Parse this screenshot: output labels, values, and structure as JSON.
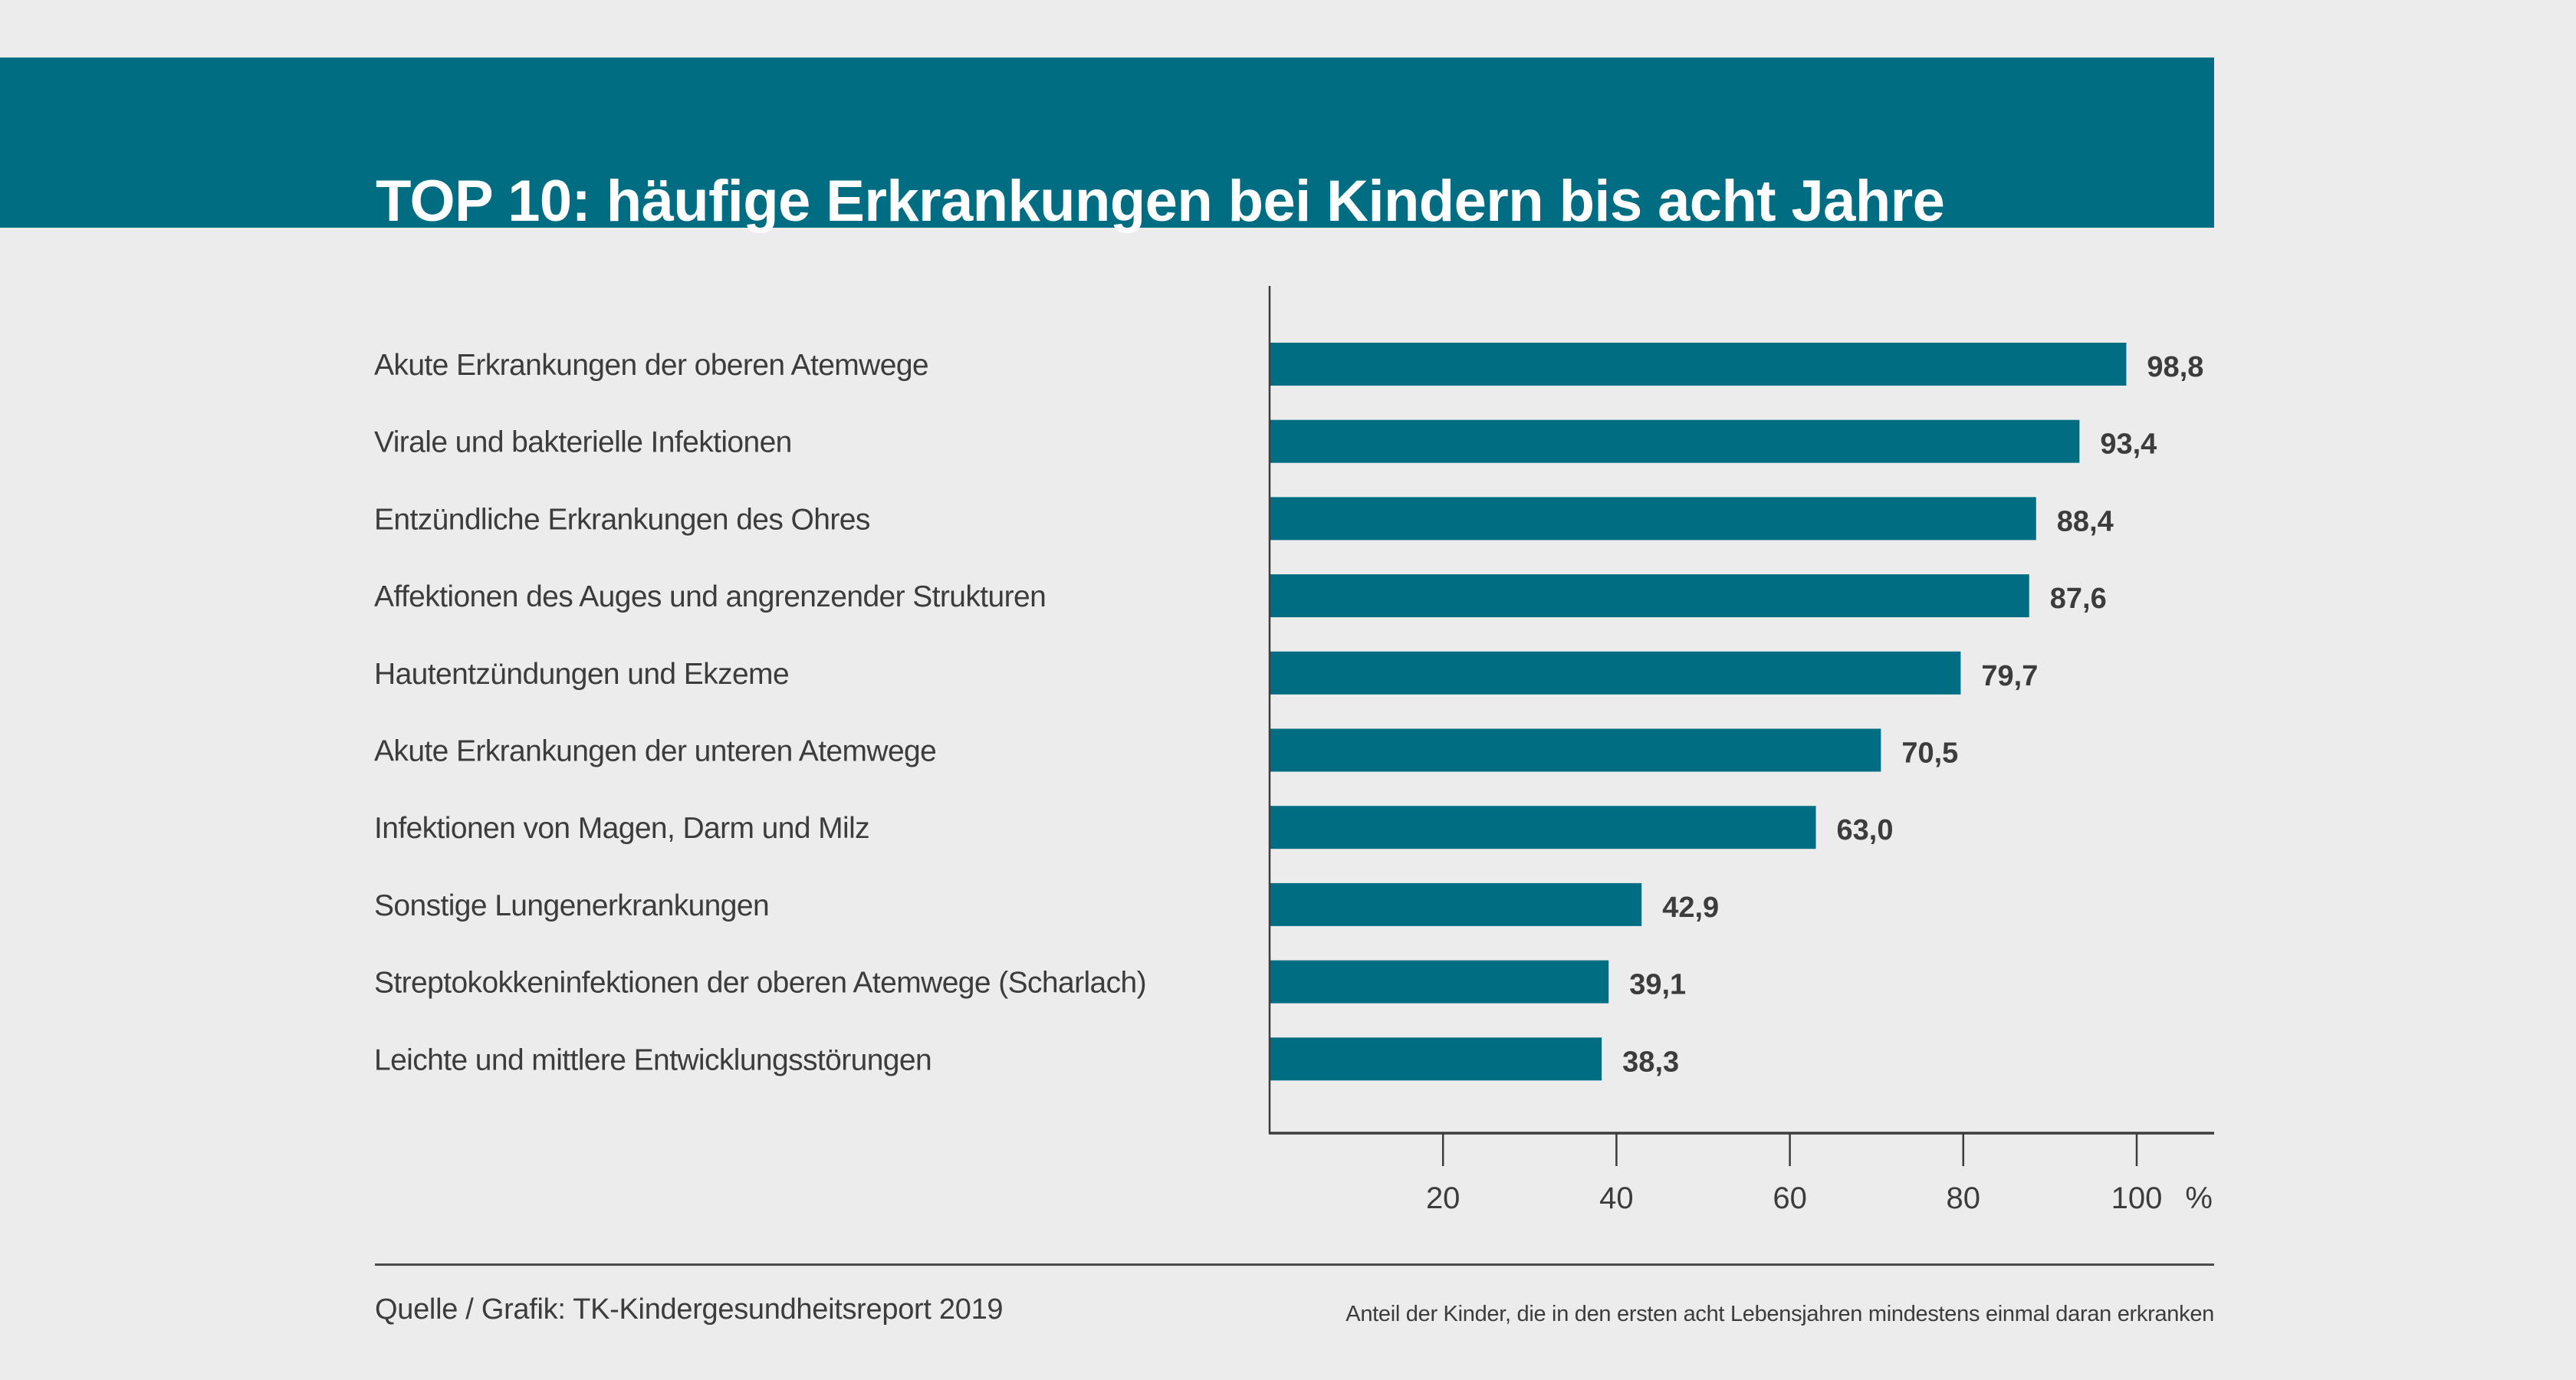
{
  "header": {
    "title": "TOP 10: häufige Erkrankungen bei Kindern bis acht Jahre"
  },
  "colors": {
    "accent": "#006d82",
    "background": "#ececec",
    "text": "#3c3c3c",
    "title_text": "#ffffff"
  },
  "footer": {
    "source": "Quelle / Grafik: TK-Kindergesundheitsreport 2019",
    "note": "Anteil der Kinder, die in den ersten acht Lebensjahren mindestens einmal daran erkranken"
  },
  "chart_data": {
    "type": "bar",
    "orientation": "horizontal",
    "title": "TOP 10: häufige Erkrankungen bei Kindern bis acht Jahre",
    "xlabel": "Anteil der Kinder, die in den ersten acht Lebensjahren mindestens einmal daran erkranken",
    "ylabel": "",
    "unit": "%",
    "xlim": [
      0,
      100
    ],
    "xticks": [
      20,
      40,
      60,
      80,
      100
    ],
    "xtick_labels": [
      "20",
      "40",
      "60",
      "80",
      "100"
    ],
    "grid": false,
    "legend": null,
    "categories": [
      "Akute Erkrankungen der oberen Atemwege",
      "Virale und bakterielle Infektionen",
      "Entzündliche Erkrankungen des Ohres",
      "Affektionen des Auges und angrenzender Strukturen",
      "Hautentzündungen und Ekzeme",
      "Akute Erkrankungen der unteren Atemwege",
      "Infektionen von Magen, Darm und Milz",
      "Sonstige Lungenerkrankungen",
      "Streptokokkeninfektionen der oberen Atemwege (Scharlach)",
      "Leichte und mittlere Entwicklungsstörungen"
    ],
    "values": [
      98.8,
      93.4,
      88.4,
      87.6,
      79.7,
      70.5,
      63.0,
      42.9,
      39.1,
      38.3
    ],
    "value_labels": [
      "98,8",
      "93,4",
      "88,4",
      "87,6",
      "79,7",
      "70,5",
      "63,0",
      "42,9",
      "39,1",
      "38,3"
    ]
  }
}
